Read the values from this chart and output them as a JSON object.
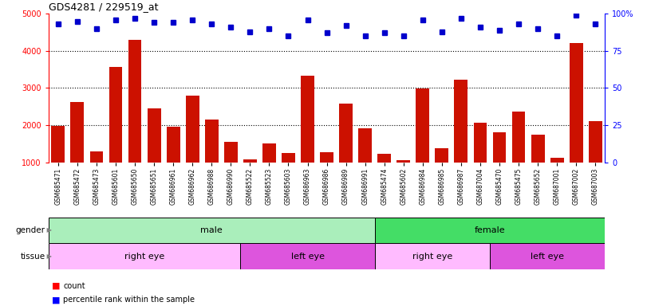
{
  "title": "GDS4281 / 229519_at",
  "samples": [
    "GSM685471",
    "GSM685472",
    "GSM685473",
    "GSM685601",
    "GSM685650",
    "GSM685651",
    "GSM686961",
    "GSM686962",
    "GSM686988",
    "GSM686990",
    "GSM685522",
    "GSM685523",
    "GSM685603",
    "GSM686963",
    "GSM686986",
    "GSM686989",
    "GSM686991",
    "GSM685474",
    "GSM685602",
    "GSM686984",
    "GSM686985",
    "GSM686987",
    "GSM687004",
    "GSM685470",
    "GSM685475",
    "GSM685652",
    "GSM687001",
    "GSM687002",
    "GSM687003"
  ],
  "counts": [
    1970,
    2620,
    1290,
    3570,
    4290,
    2440,
    1960,
    2800,
    2160,
    1550,
    1080,
    1510,
    1240,
    3330,
    1270,
    2580,
    1920,
    1230,
    1060,
    2980,
    1380,
    3230,
    2060,
    1800,
    2360,
    1750,
    1120,
    4220,
    2100
  ],
  "percentiles": [
    93,
    95,
    90,
    96,
    97,
    94,
    94,
    96,
    93,
    91,
    88,
    90,
    85,
    96,
    87,
    92,
    85,
    87,
    85,
    96,
    88,
    97,
    91,
    89,
    93,
    90,
    85,
    99,
    93
  ],
  "gender_regions": [
    {
      "label": "male",
      "start": 0,
      "end": 17,
      "color": "#AAEEBB"
    },
    {
      "label": "female",
      "start": 17,
      "end": 29,
      "color": "#44DD66"
    }
  ],
  "tissue_regions": [
    {
      "label": "right eye",
      "start": 0,
      "end": 10,
      "color": "#FFBBFF"
    },
    {
      "label": "left eye",
      "start": 10,
      "end": 17,
      "color": "#DD55DD"
    },
    {
      "label": "right eye",
      "start": 17,
      "end": 23,
      "color": "#FFBBFF"
    },
    {
      "label": "left eye",
      "start": 23,
      "end": 29,
      "color": "#DD55DD"
    }
  ],
  "bar_color": "#CC1100",
  "dot_color": "#0000CC",
  "ylim_left": [
    1000,
    5000
  ],
  "ylim_right": [
    0,
    100
  ],
  "yticks_left": [
    1000,
    2000,
    3000,
    4000,
    5000
  ],
  "yticks_right": [
    0,
    25,
    50,
    75,
    100
  ],
  "grid_lines": [
    2000,
    3000,
    4000
  ],
  "background_color": "#ffffff"
}
